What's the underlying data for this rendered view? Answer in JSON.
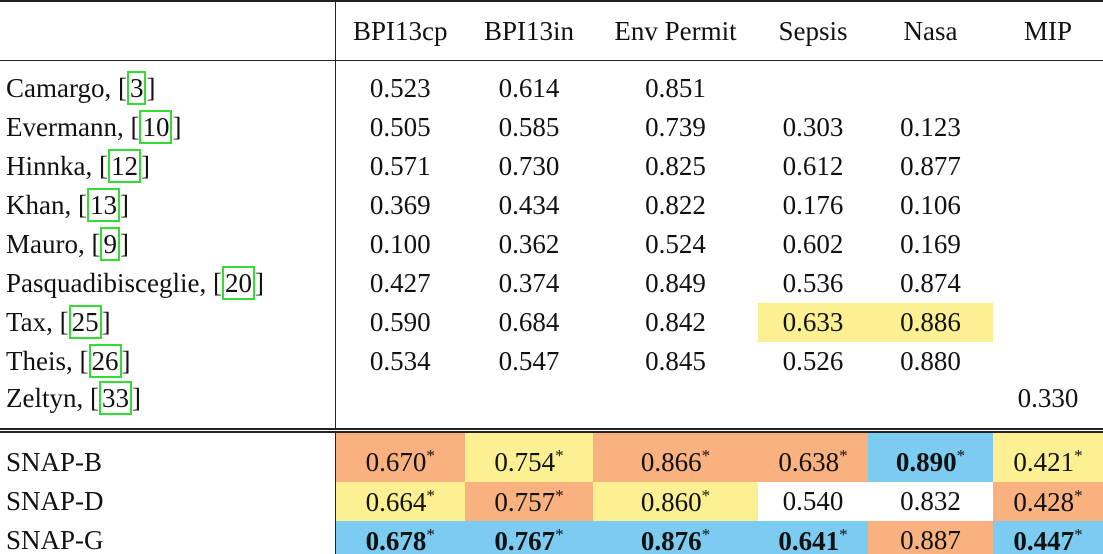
{
  "table": {
    "header": [
      "BPI13cp",
      "BPI13in",
      "Env Permit",
      "Sepsis",
      "Nasa",
      "MIP"
    ],
    "groups": [
      {
        "rows": [
          {
            "name": "Camargo, ",
            "ref": "3",
            "cells": [
              {
                "text": "0.523"
              },
              {
                "text": "0.614"
              },
              {
                "text": "0.851"
              },
              null,
              null,
              null
            ]
          },
          {
            "name": "Evermann, ",
            "ref": "10",
            "cells": [
              {
                "text": "0.505"
              },
              {
                "text": "0.585"
              },
              {
                "text": "0.739"
              },
              {
                "text": "0.303"
              },
              {
                "text": "0.123"
              },
              null
            ]
          },
          {
            "name": "Hinnka, ",
            "ref": "12",
            "cells": [
              {
                "text": "0.571"
              },
              {
                "text": "0.730"
              },
              {
                "text": "0.825"
              },
              {
                "text": "0.612"
              },
              {
                "text": "0.877"
              },
              null
            ]
          },
          {
            "name": "Khan, ",
            "ref": "13",
            "cells": [
              {
                "text": "0.369"
              },
              {
                "text": "0.434"
              },
              {
                "text": "0.822"
              },
              {
                "text": "0.176"
              },
              {
                "text": "0.106"
              },
              null
            ]
          },
          {
            "name": "Mauro, ",
            "ref": "9",
            "cells": [
              {
                "text": "0.100"
              },
              {
                "text": "0.362"
              },
              {
                "text": "0.524"
              },
              {
                "text": "0.602"
              },
              {
                "text": "0.169"
              },
              null
            ]
          },
          {
            "name": "Pasquadibisceglie, ",
            "ref": "20",
            "cells": [
              {
                "text": "0.427"
              },
              {
                "text": "0.374"
              },
              {
                "text": "0.849"
              },
              {
                "text": "0.536"
              },
              {
                "text": "0.874"
              },
              null
            ]
          },
          {
            "name": "Tax, ",
            "ref": "25",
            "cells": [
              {
                "text": "0.590"
              },
              {
                "text": "0.684"
              },
              {
                "text": "0.842"
              },
              {
                "text": "0.633",
                "bg": "#fcf093"
              },
              {
                "text": "0.886",
                "bg": "#fcf093"
              },
              null
            ]
          },
          {
            "name": "Theis, ",
            "ref": "26",
            "cells": [
              {
                "text": "0.534"
              },
              {
                "text": "0.547"
              },
              {
                "text": "0.845"
              },
              {
                "text": "0.526"
              },
              {
                "text": "0.880"
              },
              null
            ]
          },
          {
            "name": "Zeltyn, ",
            "ref": "33",
            "cells": [
              null,
              null,
              null,
              null,
              null,
              {
                "text": "0.330"
              }
            ]
          }
        ]
      },
      {
        "rows": [
          {
            "name": "SNAP-B",
            "cells": [
              {
                "text": "0.670",
                "sup": "*",
                "bg": "#f8b17f"
              },
              {
                "text": "0.754",
                "sup": "*",
                "bg": "#fcf093"
              },
              {
                "text": "0.866",
                "sup": "*",
                "bg": "#f8b17f"
              },
              {
                "text": "0.638",
                "sup": "*",
                "bg": "#f8b17f"
              },
              {
                "text": "0.890",
                "sup": "*",
                "bg": "#7ccbf0",
                "bold": true
              },
              {
                "text": "0.421",
                "sup": "*",
                "bg": "#fcf093"
              }
            ]
          },
          {
            "name": "SNAP-D",
            "cells": [
              {
                "text": "0.664",
                "sup": "*",
                "bg": "#fcf093"
              },
              {
                "text": "0.757",
                "sup": "*",
                "bg": "#f8b17f"
              },
              {
                "text": "0.860",
                "sup": "*",
                "bg": "#fcf093"
              },
              {
                "text": "0.540"
              },
              {
                "text": "0.832"
              },
              {
                "text": "0.428",
                "sup": "*",
                "bg": "#f8b17f"
              }
            ]
          },
          {
            "name": "SNAP-G",
            "cells": [
              {
                "text": "0.678",
                "sup": "*",
                "bg": "#7ccbf0",
                "bold": true
              },
              {
                "text": "0.767",
                "sup": "*",
                "bg": "#7ccbf0",
                "bold": true
              },
              {
                "text": "0.876",
                "sup": "*",
                "bg": "#7ccbf0",
                "bold": true
              },
              {
                "text": "0.641",
                "sup": "*",
                "bg": "#7ccbf0",
                "bold": true
              },
              {
                "text": "0.887",
                "bg": "#f8b17f"
              },
              {
                "text": "0.447",
                "sup": "*",
                "bg": "#7ccbf0",
                "bold": true
              }
            ]
          }
        ]
      }
    ]
  }
}
